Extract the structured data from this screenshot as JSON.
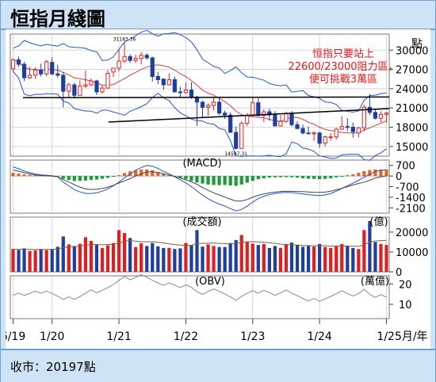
{
  "title": "恒指月綫圖",
  "footer": "收市：20197點",
  "annotation": [
    "恒指只要站上",
    "22600/23000阻力區，",
    "便可挑戰3萬區"
  ],
  "chart_data": [
    {
      "type": "candlestick",
      "title": "",
      "unit_label": "點",
      "yticks": [
        30000,
        27000,
        24000,
        21000,
        18000,
        15000
      ],
      "ylim": [
        13500,
        32500
      ],
      "point_labels": [
        "31183.36",
        "14597.31"
      ],
      "x": [
        "2019-06",
        "2019-07",
        "2019-08",
        "2019-09",
        "2019-10",
        "2019-11",
        "2019-12",
        "2020-01",
        "2020-02",
        "2020-03",
        "2020-04",
        "2020-05",
        "2020-06",
        "2020-07",
        "2020-08",
        "2020-09",
        "2020-10",
        "2020-11",
        "2020-12",
        "2021-01",
        "2021-02",
        "2021-03",
        "2021-04",
        "2021-05",
        "2021-06",
        "2021-07",
        "2021-08",
        "2021-09",
        "2021-10",
        "2021-11",
        "2021-12",
        "2022-01",
        "2022-02",
        "2022-03",
        "2022-04",
        "2022-05",
        "2022-06",
        "2022-07",
        "2022-08",
        "2022-09",
        "2022-10",
        "2022-11",
        "2022-12",
        "2023-01",
        "2023-02",
        "2023-03",
        "2023-04",
        "2023-05",
        "2023-06",
        "2023-07",
        "2023-08",
        "2023-09",
        "2023-10",
        "2023-11",
        "2023-12",
        "2024-01",
        "2024-02",
        "2024-03",
        "2024-04",
        "2024-05",
        "2024-06",
        "2024-07",
        "2024-08",
        "2024-09",
        "2024-10",
        "2024-11",
        "2024-12",
        "2025-01"
      ],
      "open": [
        27100,
        28500,
        27800,
        25700,
        26100,
        26900,
        26300,
        28100,
        26300,
        26100,
        23600,
        24600,
        22960,
        24400,
        24600,
        25200,
        23500,
        24100,
        26600,
        27200,
        28300,
        29000,
        28400,
        28700,
        29200,
        28800,
        25900,
        25500,
        24600,
        25400,
        23500,
        23400,
        23800,
        22700,
        21900,
        21100,
        21400,
        21900,
        20200,
        19900,
        17200,
        14700,
        18600,
        19800,
        21800,
        19800,
        20400,
        19900,
        18200,
        18900,
        20100,
        18400,
        17800,
        17100,
        17000,
        17100,
        15500,
        16500,
        16500,
        17700,
        18100,
        18000,
        17100,
        17900,
        21100,
        20300,
        19400,
        20000
      ],
      "high": [
        28700,
        29000,
        28200,
        27400,
        27300,
        27900,
        28500,
        28900,
        27700,
        26600,
        24900,
        24900,
        25300,
        26800,
        25600,
        25400,
        24600,
        26900,
        27100,
        30200,
        31183,
        29400,
        29300,
        29700,
        29500,
        29000,
        26600,
        25600,
        26400,
        25900,
        24300,
        24950,
        25000,
        22900,
        22100,
        21700,
        22700,
        22500,
        20600,
        20300,
        18100,
        18900,
        20200,
        22700,
        22500,
        20800,
        20900,
        20500,
        19900,
        20400,
        20500,
        18900,
        18400,
        18100,
        17400,
        17300,
        16700,
        17100,
        17900,
        19700,
        19400,
        18700,
        18000,
        21500,
        23200,
        20700,
        20500,
        20400
      ],
      "low": [
        26600,
        27400,
        25200,
        25500,
        25500,
        25900,
        25900,
        26100,
        25700,
        21100,
        22700,
        22500,
        22900,
        24100,
        24400,
        23000,
        23200,
        24000,
        25800,
        26700,
        28000,
        28000,
        28000,
        27800,
        28500,
        25100,
        24700,
        23800,
        24500,
        23600,
        22600,
        23200,
        22400,
        18200,
        19500,
        19800,
        20600,
        19900,
        19300,
        17200,
        14597,
        14800,
        18200,
        19600,
        19800,
        18800,
        19000,
        18200,
        18100,
        18700,
        18100,
        17700,
        16900,
        16900,
        15900,
        14800,
        15000,
        15900,
        16100,
        17600,
        17400,
        16400,
        16400,
        17400,
        19900,
        19200,
        18800,
        18700
      ],
      "close": [
        28500,
        27800,
        25700,
        26100,
        26900,
        26300,
        28200,
        26300,
        26100,
        23600,
        24600,
        22960,
        24400,
        24600,
        25200,
        23500,
        24100,
        26400,
        27200,
        28300,
        29000,
        28400,
        28700,
        29200,
        28800,
        25900,
        25400,
        24600,
        25400,
        23500,
        23400,
        23800,
        22700,
        21900,
        21100,
        21400,
        21900,
        20200,
        19900,
        17200,
        14700,
        18600,
        19800,
        21800,
        19800,
        20400,
        19900,
        18200,
        18900,
        20100,
        18400,
        17800,
        17100,
        17000,
        17100,
        15500,
        16500,
        16500,
        17700,
        18100,
        18000,
        17300,
        17900,
        21100,
        20300,
        19400,
        20000,
        20197
      ]
    },
    {
      "type": "bar",
      "title": "MACD",
      "yticks": [
        700,
        0,
        -700,
        -1400,
        -2100
      ],
      "ylim": [
        -2450,
        1050
      ],
      "histogram": [
        210,
        160,
        110,
        80,
        60,
        50,
        40,
        30,
        10,
        -180,
        -260,
        -330,
        -320,
        -300,
        -260,
        -230,
        -180,
        -120,
        -40,
        60,
        200,
        310,
        380,
        420,
        430,
        380,
        260,
        160,
        80,
        -20,
        -120,
        -200,
        -320,
        -430,
        -500,
        -560,
        -590,
        -600,
        -590,
        -620,
        -650,
        -560,
        -440,
        -320,
        -210,
        -150,
        -110,
        -90,
        -80,
        -70,
        -80,
        -110,
        -150,
        -180,
        -190,
        -210,
        -190,
        -150,
        -90,
        -10,
        60,
        120,
        210,
        320,
        400,
        430,
        430,
        410
      ],
      "macd": [
        600,
        480,
        330,
        220,
        130,
        80,
        50,
        20,
        -40,
        -400,
        -650,
        -900,
        -1050,
        -1150,
        -1150,
        -1100,
        -1000,
        -850,
        -650,
        -400,
        -120,
        140,
        380,
        560,
        700,
        650,
        500,
        300,
        150,
        -50,
        -250,
        -450,
        -700,
        -980,
        -1260,
        -1500,
        -1700,
        -1850,
        -1980,
        -2150,
        -2300,
        -2200,
        -1990,
        -1720,
        -1480,
        -1330,
        -1220,
        -1150,
        -1100,
        -1080,
        -1090,
        -1130,
        -1180,
        -1230,
        -1260,
        -1290,
        -1250,
        -1150,
        -1000,
        -820,
        -640,
        -470,
        -280,
        -80,
        120,
        300,
        380,
        420
      ],
      "signal": [
        390,
        320,
        220,
        140,
        70,
        30,
        10,
        -10,
        -50,
        -220,
        -390,
        -570,
        -730,
        -850,
        -890,
        -870,
        -820,
        -730,
        -610,
        -460,
        -320,
        -170,
        0,
        140,
        270,
        270,
        240,
        140,
        70,
        -30,
        -130,
        -250,
        -380,
        -550,
        -760,
        -940,
        -1110,
        -1250,
        -1390,
        -1530,
        -1650,
        -1640,
        -1550,
        -1400,
        -1270,
        -1180,
        -1110,
        -1060,
        -1020,
        -1010,
        -1010,
        -1020,
        -1030,
        -1050,
        -1070,
        -1080,
        -1060,
        -1000,
        -910,
        -810,
        -700,
        -590,
        -490,
        -400,
        -280,
        -130,
        -50,
        10
      ]
    },
    {
      "type": "bar",
      "title": "成交額",
      "unit_label": "億",
      "yticks": [
        20000,
        10000,
        0
      ],
      "ylim": [
        0,
        27500
      ],
      "values": [
        11500,
        11000,
        11800,
        10500,
        10800,
        11500,
        10900,
        11200,
        12600,
        17800,
        13800,
        13000,
        14100,
        17400,
        15600,
        13500,
        12000,
        13300,
        14500,
        21000,
        19500,
        17000,
        12500,
        14300,
        13000,
        14500,
        12800,
        12000,
        12000,
        11500,
        11800,
        14500,
        13500,
        21000,
        12700,
        13800,
        13000,
        12500,
        12500,
        14500,
        16000,
        18500,
        15000,
        14200,
        13500,
        14000,
        12000,
        13000,
        12000,
        14000,
        14700,
        13500,
        12600,
        13000,
        12700,
        14000,
        12500,
        12000,
        12800,
        14000,
        13000,
        12000,
        11500,
        21000,
        25500,
        15000,
        14000,
        13500
      ],
      "color": [
        "red",
        "blue",
        "blue",
        "red",
        "red",
        "blue",
        "red",
        "blue",
        "blue",
        "blue",
        "red",
        "blue",
        "red",
        "red",
        "red",
        "blue",
        "red",
        "red",
        "red",
        "red",
        "red",
        "blue",
        "red",
        "red",
        "blue",
        "blue",
        "blue",
        "blue",
        "red",
        "blue",
        "blue",
        "red",
        "blue",
        "blue",
        "blue",
        "red",
        "red",
        "blue",
        "blue",
        "blue",
        "blue",
        "red",
        "red",
        "red",
        "blue",
        "red",
        "blue",
        "blue",
        "red",
        "red",
        "blue",
        "blue",
        "blue",
        "blue",
        "red",
        "blue",
        "red",
        "red",
        "red",
        "red",
        "blue",
        "blue",
        "red",
        "red",
        "blue",
        "blue",
        "red",
        "red"
      ],
      "ma": [
        11400,
        11300,
        11350,
        11300,
        11200,
        11250,
        11200,
        11350,
        11500,
        12200,
        12500,
        12700,
        12900,
        13500,
        13700,
        13800,
        13600,
        13700,
        13900,
        14600,
        15300,
        15800,
        15400,
        15100,
        15100,
        15200,
        14900,
        14500,
        14100,
        13700,
        13400,
        13400,
        13300,
        14400,
        14300,
        14400,
        14500,
        14300,
        14200,
        14000,
        14300,
        14800,
        15100,
        15200,
        15000,
        14900,
        14600,
        14300,
        13900,
        13700,
        13600,
        13500,
        13300,
        13200,
        13100,
        13200,
        13100,
        13000,
        12900,
        13000,
        13000,
        12900,
        12800,
        13600,
        15100,
        15500,
        15700,
        15800
      ]
    },
    {
      "type": "line",
      "title": "OBV",
      "unit_label": "萬億",
      "yticks": [
        20,
        10
      ],
      "ylim": [
        3,
        24
      ],
      "values": [
        14.5,
        15.5,
        14.4,
        15.4,
        16.5,
        15.4,
        16.5,
        15.3,
        14.0,
        12.3,
        13.7,
        12.4,
        13.8,
        15.5,
        17.1,
        15.7,
        16.9,
        18.2,
        19.7,
        21.8,
        23.7,
        22.0,
        23.2,
        24.6,
        23.3,
        21.8,
        20.5,
        19.3,
        20.5,
        19.4,
        18.2,
        19.6,
        18.3,
        16.2,
        14.9,
        16.3,
        17.6,
        16.4,
        15.1,
        13.6,
        12.0,
        13.9,
        15.4,
        16.8,
        15.5,
        16.9,
        15.7,
        14.4,
        15.6,
        17.0,
        15.5,
        14.2,
        12.9,
        11.6,
        12.9,
        11.5,
        12.7,
        13.9,
        15.2,
        16.6,
        15.3,
        14.1,
        15.3,
        17.4,
        14.9,
        13.4,
        14.8,
        13.5
      ]
    }
  ],
  "xaxis_labels": [
    "6/19",
    "1/20",
    "1/21",
    "1/22",
    "1/23",
    "1/24",
    "1/25月/年"
  ],
  "xaxis_label_months": [
    "2019-06",
    "2020-01",
    "2021-01",
    "2022-01",
    "2023-01",
    "2024-01",
    "2025-01"
  ],
  "colors": {
    "up": "#e02020",
    "down": "#1f3f9f",
    "ma_blue": "#2255cc",
    "ma_red": "#d04040",
    "histogram_green": "#1f9a3a",
    "histogram_orange": "#e8661c",
    "frame": "#cfe3f6"
  }
}
